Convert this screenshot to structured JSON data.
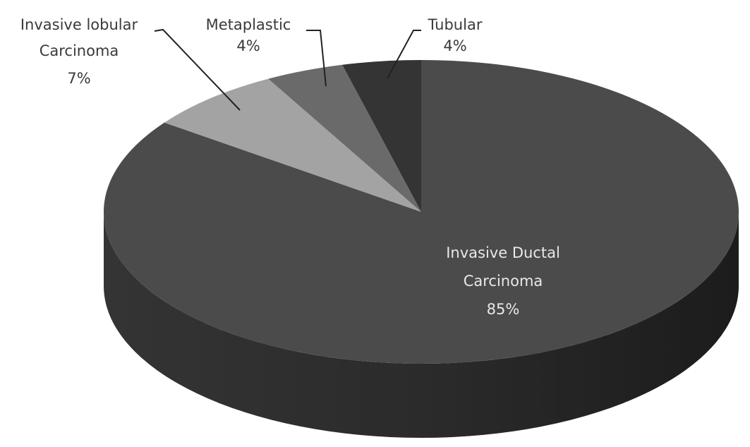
{
  "chart_data": {
    "type": "pie",
    "style": "3d",
    "start_angle": "12 o'clock",
    "direction": "clockwise",
    "slices": [
      {
        "name": "Invasive Ductal Carcinoma",
        "label_lines": [
          "Invasive  Ductal",
          "Carcinoma"
        ],
        "value": 85,
        "label": "85%",
        "color": "#4b4b4b",
        "side_color": "#2a2a2a"
      },
      {
        "name": "Invasive lobular Carcinoma",
        "label_lines": [
          "Invasive  lobular",
          "Carcinoma"
        ],
        "value": 7,
        "label": "7%",
        "color": "#a3a3a3",
        "side_color": "#7a7a7a"
      },
      {
        "name": "Metaplastic",
        "label_lines": [
          "Metaplastic"
        ],
        "value": 4,
        "label": "4%",
        "color": "#6a6a6a",
        "side_color": "#4a4a4a"
      },
      {
        "name": "Tubular",
        "label_lines": [
          "Tubular"
        ],
        "value": 4,
        "label": "4%",
        "color": "#343434",
        "side_color": "#222222"
      }
    ],
    "legend": "none",
    "data_labels": "outside with leader lines, except largest slice inside"
  }
}
